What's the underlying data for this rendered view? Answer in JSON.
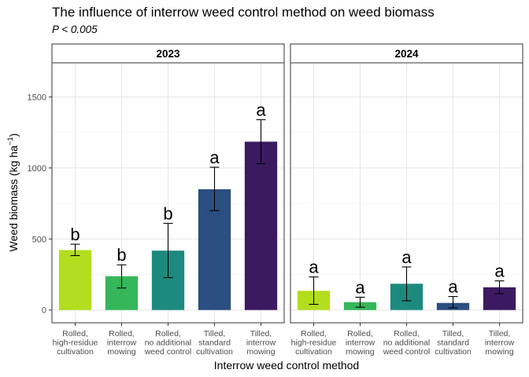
{
  "chart_data": {
    "type": "bar",
    "title": "The influence of interrow weed control method on weed biomass",
    "subtitle": "P < 0.005",
    "xlabel": "Interrow weed control method",
    "ylabel_main": "Weed biomass (kg ha",
    "ylabel_sup": "−1",
    "ylabel_close": ")",
    "ylim": [
      -90,
      1740
    ],
    "yticks": [
      0,
      500,
      1000,
      1500
    ],
    "yticklabels": [
      "0",
      "500",
      "1000",
      "1500"
    ],
    "grid": true,
    "categories": [
      [
        "Rolled,",
        "high-residue",
        "cultivation"
      ],
      [
        "Rolled,",
        "interrow",
        "mowing"
      ],
      [
        "Rolled,",
        "no additional",
        "weed control"
      ],
      [
        "Tilled,",
        "standard",
        "cultivation"
      ],
      [
        "Tilled,",
        "interrow",
        "mowing"
      ]
    ],
    "colors": [
      "#b3dd1f",
      "#35b65a",
      "#1d8a7f",
      "#2a4f80",
      "#3c1a62"
    ],
    "panels": [
      {
        "label": "2023",
        "values": [
          422,
          238,
          418,
          850,
          1185
        ],
        "err_low": [
          383,
          155,
          228,
          700,
          1030
        ],
        "err_high": [
          463,
          318,
          610,
          1005,
          1340
        ],
        "letters": [
          "b",
          "b",
          "b",
          "a",
          "a"
        ]
      },
      {
        "label": "2024",
        "values": [
          135,
          55,
          185,
          50,
          160
        ],
        "err_low": [
          40,
          20,
          65,
          15,
          115
        ],
        "err_high": [
          233,
          90,
          303,
          95,
          205
        ],
        "letters": [
          "a",
          "a",
          "a",
          "a",
          "a"
        ]
      }
    ]
  }
}
